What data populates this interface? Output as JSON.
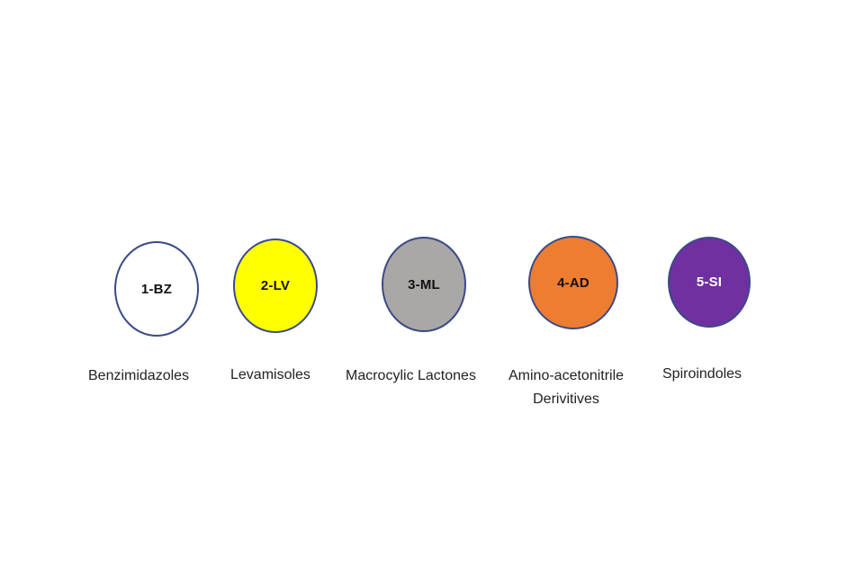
{
  "classes": [
    {
      "code": "1-BZ",
      "name_lines": [
        "Benzimidazoles"
      ],
      "fill": "#ffffff",
      "text_color": "#111111"
    },
    {
      "code": "2-LV",
      "name_lines": [
        "Levamisoles"
      ],
      "fill": "#ffff00",
      "text_color": "#111111"
    },
    {
      "code": "3-ML",
      "name_lines": [
        "Macrocylic Lactones"
      ],
      "fill": "#aaa7a7",
      "text_color": "#111111"
    },
    {
      "code": "4-AD",
      "name_lines": [
        "Amino-acetonitrile",
        "Derivitives"
      ],
      "fill": "#ed7d31",
      "text_color": "#111111"
    },
    {
      "code": "5-SI",
      "name_lines": [
        "Spiroindoles"
      ],
      "fill": "#7030a0",
      "text_color": "#ffffff"
    }
  ]
}
